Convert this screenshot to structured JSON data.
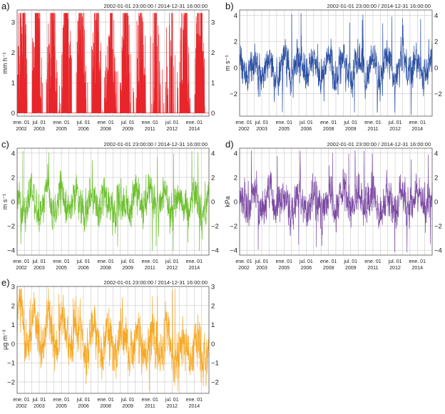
{
  "period_label": "2002-01-01 23:00:00 / 2014-12-31 16:00:00",
  "x_axis": {
    "ticks": [
      {
        "top": "ene. 01",
        "bottom": "2002"
      },
      {
        "top": "jul. 01",
        "bottom": "2003"
      },
      {
        "top": "ene. 01",
        "bottom": "2005"
      },
      {
        "top": "jul. 01",
        "bottom": "2006"
      },
      {
        "top": "ene. 01",
        "bottom": "2008"
      },
      {
        "top": "jul. 01",
        "bottom": "2009"
      },
      {
        "top": "ene. 01",
        "bottom": "2011"
      },
      {
        "top": "jul. 01",
        "bottom": "2012"
      },
      {
        "top": "ene. 01",
        "bottom": "2014"
      }
    ],
    "tick_dates": [
      "2002-01-01",
      "2003-07-01",
      "2005-01-01",
      "2006-07-01",
      "2008-01-01",
      "2009-07-01",
      "2011-01-01",
      "2012-07-01",
      "2014-01-01"
    ],
    "start": "2002-01-01",
    "end": "2014-12-31"
  },
  "chart_data": [
    {
      "id": "a",
      "panel_label": "a)",
      "type": "line",
      "ylabel": "mm h⁻¹",
      "ylim": [
        -0.1,
        3.4
      ],
      "yticks": [
        0,
        1,
        2,
        3
      ],
      "color": "#e8252a",
      "style": "precip",
      "grid": true
    },
    {
      "id": "b",
      "panel_label": "b)",
      "type": "line",
      "ylabel": "m s⁻¹",
      "ylim": [
        -3.7,
        4.4
      ],
      "yticks": [
        -2,
        0,
        2,
        4
      ],
      "color": "#2a4fa3",
      "style": "noise",
      "amplitude": 0.9,
      "spike": 4.2,
      "grid": true
    },
    {
      "id": "c",
      "panel_label": "c)",
      "type": "line",
      "ylabel": "m s⁻¹",
      "ylim": [
        -4.4,
        4.4
      ],
      "yticks": [
        -4,
        -2,
        0,
        2,
        4
      ],
      "color": "#6cc02c",
      "style": "noise",
      "amplitude": 1.0,
      "spike": 4.2,
      "grid": true
    },
    {
      "id": "d",
      "panel_label": "d)",
      "type": "line",
      "ylabel": "kPa",
      "ylim": [
        -4.4,
        4.4
      ],
      "yticks": [
        -4,
        -2,
        0,
        2,
        4
      ],
      "color": "#7b4aa2",
      "style": "noise",
      "amplitude": 1.0,
      "spike": 4.3,
      "grid": true
    },
    {
      "id": "e",
      "panel_label": "e)",
      "type": "line",
      "ylabel": "µg m⁻³",
      "ylim": [
        -2.6,
        3.0
      ],
      "yticks": [
        -2,
        -1,
        0,
        1,
        2,
        3
      ],
      "color": "#f7a823",
      "style": "noise",
      "amplitude": 0.8,
      "spike": 2.9,
      "grid": true
    }
  ]
}
